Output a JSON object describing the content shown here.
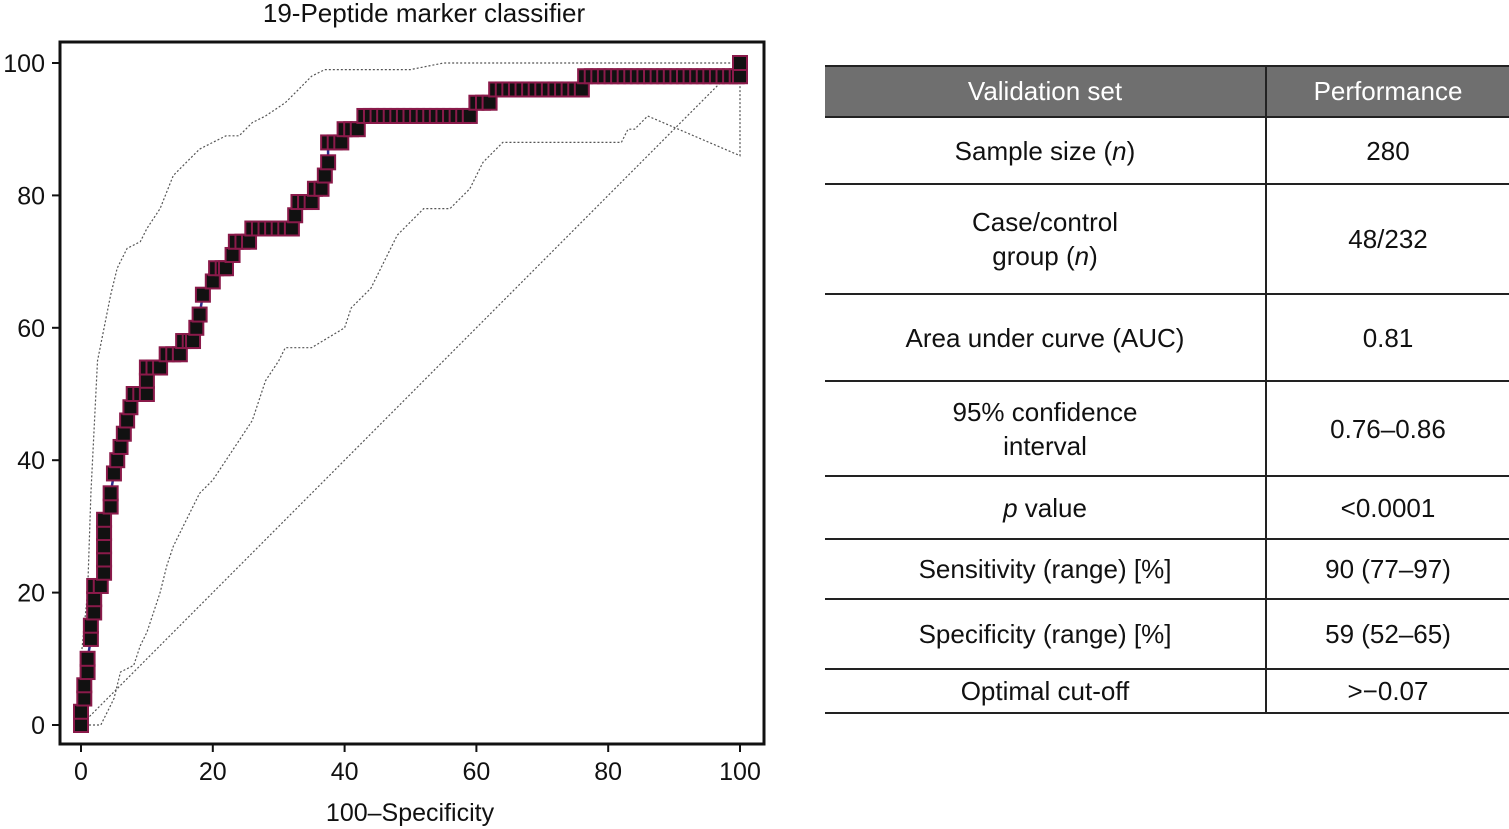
{
  "chart_data": {
    "type": "line",
    "title": "19-Peptide marker classifier",
    "xlabel": "100–Specificity",
    "ylabel": "",
    "xlim": [
      0,
      100
    ],
    "ylim": [
      0,
      100
    ],
    "xticks": [
      0,
      20,
      40,
      60,
      80,
      100
    ],
    "yticks": [
      0,
      20,
      40,
      60,
      80,
      100
    ],
    "grid": false,
    "series": [
      {
        "name": "ROC curve",
        "style": "step-markers",
        "color": "#8a1a4a",
        "points": [
          [
            0,
            0
          ],
          [
            0,
            2
          ],
          [
            0.5,
            4
          ],
          [
            0.5,
            6
          ],
          [
            1,
            8
          ],
          [
            1,
            10
          ],
          [
            1.5,
            13
          ],
          [
            1.5,
            15
          ],
          [
            2,
            17
          ],
          [
            2,
            19
          ],
          [
            2,
            21
          ],
          [
            3,
            21
          ],
          [
            3.5,
            23
          ],
          [
            3.5,
            25
          ],
          [
            3.5,
            27
          ],
          [
            3.5,
            29
          ],
          [
            3.5,
            31
          ],
          [
            4.5,
            33
          ],
          [
            4.5,
            35
          ],
          [
            5,
            38
          ],
          [
            5.5,
            40
          ],
          [
            6,
            42
          ],
          [
            6.5,
            44
          ],
          [
            7,
            46
          ],
          [
            7.5,
            48
          ],
          [
            8,
            50
          ],
          [
            10,
            50
          ],
          [
            10,
            52
          ],
          [
            10,
            54
          ],
          [
            12,
            54
          ],
          [
            13,
            56
          ],
          [
            15,
            56
          ],
          [
            15.5,
            58
          ],
          [
            17,
            58
          ],
          [
            17.5,
            60
          ],
          [
            18,
            62
          ],
          [
            18.5,
            65
          ],
          [
            20,
            67
          ],
          [
            20.5,
            69
          ],
          [
            22,
            69
          ],
          [
            23,
            71
          ],
          [
            23.5,
            73
          ],
          [
            25.5,
            73
          ],
          [
            26,
            75
          ],
          [
            32,
            75
          ],
          [
            32.5,
            77
          ],
          [
            33,
            79
          ],
          [
            35,
            79
          ],
          [
            35.5,
            81
          ],
          [
            36.5,
            81
          ],
          [
            37,
            83
          ],
          [
            37.5,
            85
          ],
          [
            37.5,
            88
          ],
          [
            39.5,
            88
          ],
          [
            40,
            90
          ],
          [
            42,
            90
          ],
          [
            43,
            92
          ],
          [
            59,
            92
          ],
          [
            60,
            94
          ],
          [
            62,
            94
          ],
          [
            63,
            96
          ],
          [
            72,
            96
          ],
          [
            72,
            96
          ],
          [
            76,
            96
          ],
          [
            76.5,
            98
          ],
          [
            100,
            98
          ],
          [
            100,
            100
          ]
        ]
      },
      {
        "name": "Upper 95% CI",
        "style": "dotted",
        "color": "#555555",
        "points": [
          [
            0,
            0
          ],
          [
            0,
            10
          ],
          [
            0.5,
            15
          ],
          [
            1,
            20
          ],
          [
            1.5,
            35
          ],
          [
            2,
            45
          ],
          [
            2.5,
            55
          ],
          [
            3.5,
            60
          ],
          [
            4.5,
            65
          ],
          [
            5.5,
            69
          ],
          [
            7,
            72
          ],
          [
            9,
            73
          ],
          [
            10,
            75
          ],
          [
            12,
            78
          ],
          [
            14,
            83
          ],
          [
            16,
            85
          ],
          [
            18,
            87
          ],
          [
            20,
            88
          ],
          [
            22,
            89
          ],
          [
            24,
            89
          ],
          [
            26,
            91
          ],
          [
            28,
            92
          ],
          [
            31,
            94
          ],
          [
            33,
            96
          ],
          [
            35,
            98
          ],
          [
            37,
            99
          ],
          [
            50,
            99
          ],
          [
            55,
            100
          ],
          [
            100,
            100
          ]
        ]
      },
      {
        "name": "Lower 95% CI",
        "style": "dotted",
        "color": "#555555",
        "points": [
          [
            0,
            0
          ],
          [
            3,
            0
          ],
          [
            4,
            2
          ],
          [
            5,
            4
          ],
          [
            6,
            8
          ],
          [
            8,
            9
          ],
          [
            9,
            12
          ],
          [
            10,
            14
          ],
          [
            11,
            17
          ],
          [
            12,
            20
          ],
          [
            13,
            24
          ],
          [
            14,
            27
          ],
          [
            16,
            31
          ],
          [
            18,
            35
          ],
          [
            20,
            37
          ],
          [
            22,
            40
          ],
          [
            24,
            43
          ],
          [
            26,
            46
          ],
          [
            27,
            49
          ],
          [
            28,
            52
          ],
          [
            30,
            55
          ],
          [
            31,
            57
          ],
          [
            35,
            57
          ],
          [
            40,
            60
          ],
          [
            41,
            63
          ],
          [
            44,
            66
          ],
          [
            46,
            70
          ],
          [
            48,
            74
          ],
          [
            50,
            76
          ],
          [
            52,
            78
          ],
          [
            56,
            78
          ],
          [
            59,
            81
          ],
          [
            60,
            83
          ],
          [
            61,
            85
          ],
          [
            62,
            86
          ],
          [
            64,
            88
          ],
          [
            80,
            88
          ],
          [
            82,
            88
          ],
          [
            83,
            90
          ],
          [
            84,
            90
          ],
          [
            86,
            92
          ],
          [
            100,
            86
          ],
          [
            100,
            100
          ]
        ]
      },
      {
        "name": "Reference diagonal",
        "style": "dotted",
        "color": "#555555",
        "points": [
          [
            0,
            0
          ],
          [
            100,
            100
          ]
        ]
      }
    ]
  },
  "table": {
    "headers": [
      "Validation set",
      "Performance"
    ],
    "rows": [
      {
        "label": "Sample size (",
        "label_italic": "n",
        "label_after": ")",
        "value": "280"
      },
      {
        "label": "Case/control",
        "label2": "group (",
        "label_italic": "n",
        "label_after": ")",
        "value": "48/232"
      },
      {
        "label": "Area under curve (AUC)",
        "value": "0.81"
      },
      {
        "label": "95% confidence",
        "label2": "interval",
        "value": "0.76–0.86"
      },
      {
        "label_italic": "p",
        "label_after": " value",
        "value": "<0.0001"
      },
      {
        "label": "Sensitivity (range) [%]",
        "value": "90 (77–97)"
      },
      {
        "label": "Specificity (range) [%]",
        "value": "59 (52–65)"
      },
      {
        "label": "Optimal cut-off",
        "value": ">−0.07"
      }
    ]
  }
}
